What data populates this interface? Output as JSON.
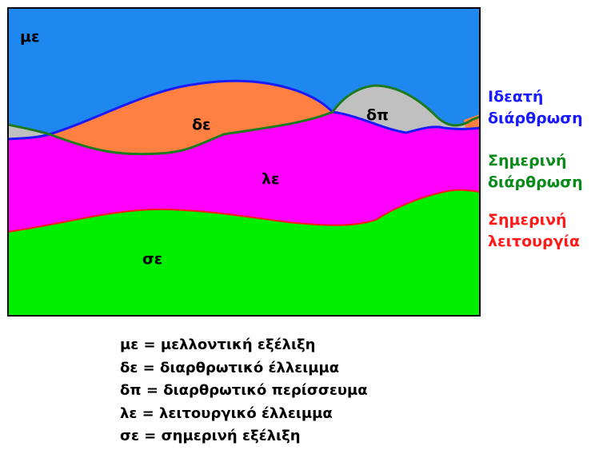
{
  "regions": {
    "me": "με",
    "de": "δε",
    "dp": "δπ",
    "le": "λε",
    "oe": "σε"
  },
  "side_labels": {
    "ideal_structure": {
      "line1": "Ιδεατή",
      "line2": "διάρθρωση",
      "color": "#1a1aff"
    },
    "current_structure": {
      "line1": "Σημερινή",
      "line2": "διάρθρωση",
      "color": "#0a8a1a"
    },
    "current_function": {
      "line1": "Σημερινή",
      "line2": "λειτουργία",
      "color": "#ff1a1a"
    }
  },
  "legend": [
    "με = μελλοντική εξέλιξη",
    "δε = διαρθρωτικό έλλειμμα",
    "δπ = διαρθρωτικό περίσσευμα",
    "λε = λειτουργικό έλλειμμα",
    "σε = σημερινή εξέλιξη"
  ],
  "colors": {
    "future_evolution": "#1e88f0",
    "structural_deficit": "#ff8040",
    "structural_surplus": "#c0c0c0",
    "functional_deficit": "#ff00ff",
    "current_evolution": "#00ee00",
    "ideal_line": "#1a1aff",
    "structure_line": "#1e7a1e",
    "function_line": "#ff1a1a"
  }
}
